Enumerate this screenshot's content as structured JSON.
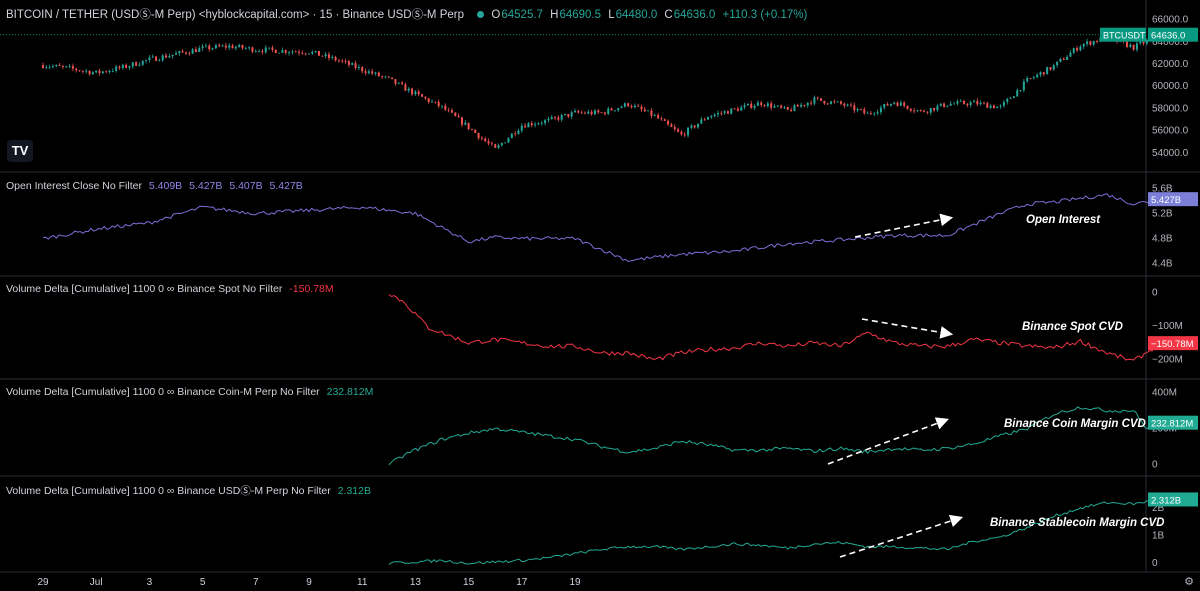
{
  "header": {
    "title": "BITCOIN / TETHER (USDⓈ-M Perp) <hyblockcapital.com> · 15 · Binance USDⓈ-M Perp",
    "ohlc": [
      {
        "label": "O",
        "value": "64525.7"
      },
      {
        "label": "H",
        "value": "64690.5"
      },
      {
        "label": "L",
        "value": "64480.0"
      },
      {
        "label": "C",
        "value": "64636.0"
      }
    ],
    "change": "+110.3 (+0.17%)"
  },
  "logo_text": "TV",
  "colors": {
    "up": "#26a69a",
    "down": "#ef5350",
    "price_tag": "#089981",
    "oi_line": "#7b6fd6",
    "oi_tag": "#7b7fd8",
    "cvd_red": "#f23645",
    "cvd_green": "#22ab94",
    "grid": "#1e222d",
    "axis_text": "#b2b5be"
  },
  "panes": [
    {
      "id": "price",
      "legend": "",
      "legend_value": "",
      "annotation": "",
      "ticks": [
        "66000.0",
        "64000.0",
        "62000.0",
        "60000.0",
        "58000.0",
        "56000.0",
        "54000.0"
      ],
      "tag_symbol": "BTCUSDT",
      "tag_value": "64636.0"
    },
    {
      "id": "oi",
      "legend": "Open Interest Close No Filter",
      "legend_values": [
        "5.409B",
        "5.427B",
        "5.407B",
        "5.427B"
      ],
      "annotation": "Open Interest",
      "ticks": [
        "5.6B",
        "5.2B",
        "4.8B",
        "4.4B"
      ],
      "tag_value": "5.427B"
    },
    {
      "id": "spot",
      "legend": "Volume Delta [Cumulative] 1100 0 ∞ Binance Spot No Filter",
      "legend_value": "-150.78M",
      "annotation": "Binance Spot CVD",
      "ticks": [
        "0",
        "−100M",
        "−200M"
      ],
      "tag_value": "−150.78M"
    },
    {
      "id": "coin",
      "legend": "Volume Delta [Cumulative] 1100 0 ∞ Binance Coin-M Perp No Filter",
      "legend_value": "232.812M",
      "annotation": "Binance Coin Margin CVD",
      "ticks": [
        "400M",
        "200M",
        "0"
      ],
      "tag_value": "232.812M"
    },
    {
      "id": "stable",
      "legend": "Volume Delta [Cumulative] 1100 0 ∞ Binance USDⓈ-M Perp No Filter",
      "legend_value": "2.312B",
      "annotation": "Binance  Stablecoin Margin CVD",
      "ticks": [
        "2B",
        "1B",
        "0"
      ],
      "tag_value": "2.312B"
    }
  ],
  "chart_data": [
    {
      "type": "candlestick",
      "title": "BITCOIN / TETHER (USDⓈ-M Perp)",
      "x_axis_labels": [
        "29",
        "Jul",
        "3",
        "5",
        "7",
        "9",
        "11",
        "13",
        "15",
        "17",
        "19"
      ],
      "ylim": [
        53000,
        66500
      ],
      "last_value": 64636.0,
      "approx_close_series": {
        "day": [
          0,
          1,
          2,
          3,
          4,
          5,
          6,
          7,
          8,
          9,
          10,
          11,
          12,
          13,
          14,
          15,
          16,
          17,
          18,
          19,
          20,
          21,
          22,
          23,
          24,
          25,
          26,
          27,
          28,
          29,
          30,
          31,
          32,
          33,
          34,
          35,
          36,
          37,
          38,
          39,
          40,
          41,
          42
        ],
        "value": [
          61900,
          61600,
          61200,
          61700,
          62400,
          62900,
          63400,
          63600,
          63300,
          63200,
          63100,
          62400,
          61500,
          60600,
          59300,
          58100,
          56300,
          54300,
          56500,
          56900,
          57600,
          57600,
          58400,
          57300,
          55600,
          57300,
          57900,
          58500,
          57800,
          58800,
          58400,
          57500,
          58600,
          57700,
          58400,
          58500,
          58100,
          60500,
          61800,
          63700,
          64400,
          63500,
          64636
        ]
      }
    },
    {
      "type": "line",
      "title": "Open Interest Close No Filter",
      "ylim": [
        4.3,
        5.7
      ],
      "unit": "B",
      "last_value": 5.427,
      "approx_series": {
        "day": [
          0,
          2,
          4,
          6,
          8,
          10,
          12,
          14,
          16,
          17,
          18,
          20,
          22,
          24,
          26,
          28,
          30,
          32,
          34,
          36,
          37,
          38,
          40,
          41,
          42
        ],
        "value": [
          4.8,
          4.95,
          5.05,
          5.3,
          5.2,
          5.25,
          5.3,
          5.2,
          4.75,
          4.82,
          4.8,
          4.8,
          4.45,
          4.55,
          4.6,
          4.72,
          4.78,
          4.85,
          4.85,
          5.2,
          5.35,
          5.38,
          5.5,
          5.35,
          5.427
        ]
      }
    },
    {
      "type": "line",
      "title": "Volume Delta [Cumulative] Binance Spot",
      "ylim": [
        -240,
        20
      ],
      "unit": "M",
      "last_value": -150.78,
      "approx_series": {
        "day": [
          13.0,
          13.6,
          14.5,
          16,
          17,
          18,
          19,
          20,
          21,
          22,
          23,
          24,
          25,
          26,
          27,
          28,
          29,
          30,
          31,
          32,
          33,
          34,
          35,
          36,
          37,
          38,
          39,
          40,
          41,
          42
        ],
        "value": [
          0,
          -30,
          -105,
          -150,
          -140,
          -150,
          -160,
          -160,
          -180,
          -180,
          -200,
          -180,
          -170,
          -165,
          -150,
          -160,
          -150,
          -160,
          -120,
          -150,
          -160,
          -160,
          -140,
          -150,
          -160,
          -165,
          -145,
          -180,
          -205,
          -150.78
        ]
      }
    },
    {
      "type": "line",
      "title": "Volume Delta [Cumulative] Binance Coin-M Perp",
      "ylim": [
        -30,
        420
      ],
      "unit": "M",
      "last_value": 232.812,
      "approx_series": {
        "day": [
          13.0,
          13.8,
          15,
          16,
          17,
          18,
          19,
          20,
          21,
          22,
          23,
          24,
          25,
          26,
          27,
          28,
          29,
          30,
          31,
          32,
          33,
          34,
          35,
          36,
          37,
          38,
          39,
          40,
          41,
          41.5,
          42
        ],
        "value": [
          0,
          70,
          140,
          175,
          200,
          180,
          160,
          140,
          100,
          70,
          90,
          130,
          110,
          80,
          80,
          90,
          75,
          90,
          70,
          90,
          80,
          90,
          115,
          160,
          200,
          280,
          320,
          300,
          300,
          200,
          232.812
        ]
      }
    },
    {
      "type": "line",
      "title": "Volume Delta [Cumulative] Binance USDⓈ-M Perp",
      "ylim": [
        -0.1,
        2.8
      ],
      "unit": "B",
      "last_value": 2.312,
      "approx_series": {
        "day": [
          13.0,
          14,
          15,
          16,
          17,
          18,
          19,
          20,
          21,
          22,
          23,
          24,
          25,
          26,
          27,
          28,
          29,
          30,
          31,
          32,
          33,
          34,
          35,
          36,
          37,
          38,
          39,
          40,
          41,
          42
        ],
        "value": [
          0.0,
          0.05,
          0.1,
          0.0,
          0.05,
          0.1,
          0.2,
          0.35,
          0.5,
          0.6,
          0.6,
          0.5,
          0.6,
          0.7,
          0.65,
          0.55,
          0.7,
          0.75,
          0.6,
          0.6,
          0.55,
          0.5,
          0.8,
          0.95,
          1.3,
          1.7,
          2.0,
          2.2,
          2.15,
          2.312
        ]
      }
    }
  ]
}
